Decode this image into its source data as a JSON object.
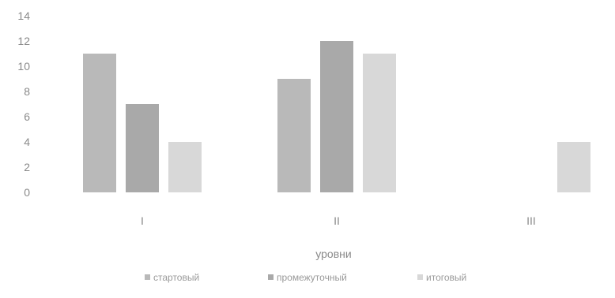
{
  "chart_data": {
    "type": "bar",
    "categories": [
      "I",
      "II",
      "III"
    ],
    "series": [
      {
        "name": "стартовый",
        "values": [
          11,
          9,
          null
        ],
        "color": "#b9b9b9"
      },
      {
        "name": "промежуточный",
        "values": [
          7,
          12,
          null
        ],
        "color": "#a9a9a9"
      },
      {
        "name": "итоговый",
        "values": [
          4,
          11,
          4
        ],
        "color": "#d8d8d8"
      }
    ],
    "title": "",
    "xlabel": "уровни",
    "ylabel": "",
    "ylim": [
      0,
      14
    ],
    "yticks": [
      0,
      2,
      4,
      6,
      8,
      10,
      12,
      14
    ],
    "grid": false,
    "legend_position": "bottom"
  }
}
